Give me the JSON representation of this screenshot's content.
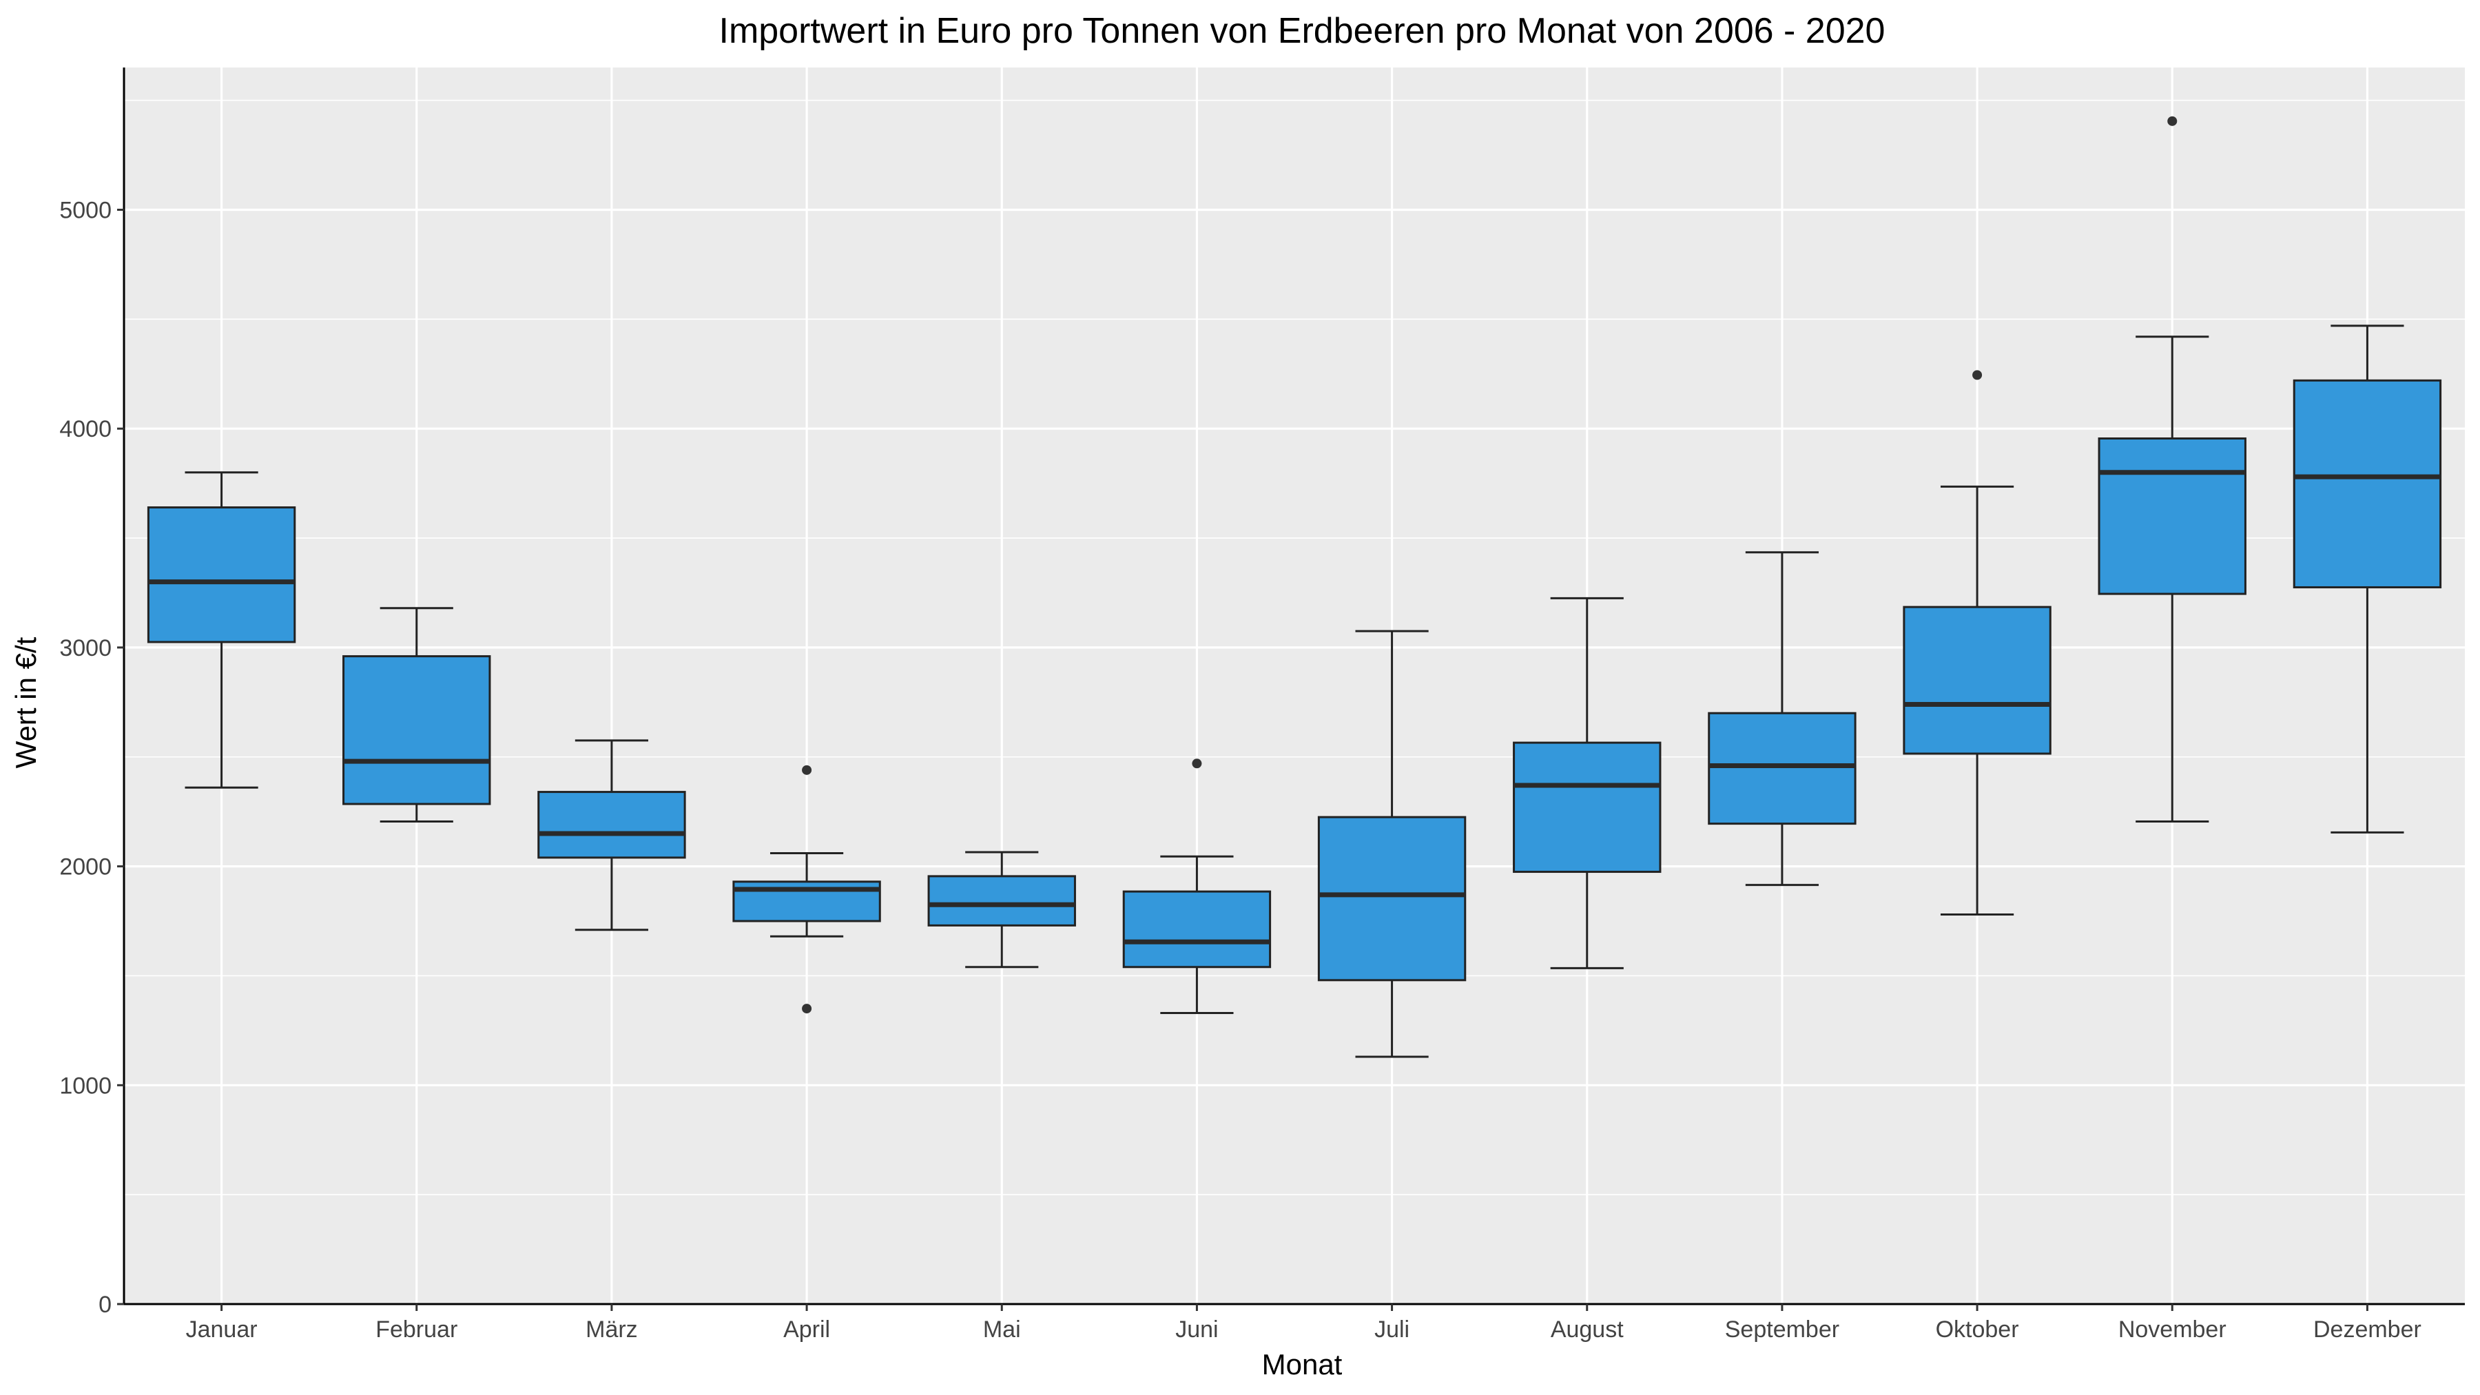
{
  "chart_data": {
    "type": "boxplot",
    "title": "Importwert in Euro pro Tonnen von Erdbeeren pro Monat von 2006 - 2020",
    "xlabel": "Monat",
    "ylabel": "Wert in €/t",
    "ylim": [
      0,
      5650
    ],
    "yticks": [
      0,
      1000,
      2000,
      3000,
      4000,
      5000
    ],
    "grid": true,
    "fill_color": "#3498db",
    "panel_color": "#ebebeb",
    "categories": [
      "Januar",
      "Februar",
      "März",
      "April",
      "Mai",
      "Juni",
      "Juli",
      "August",
      "September",
      "Oktober",
      "November",
      "Dezember"
    ],
    "boxes": [
      {
        "whisker_low": 2360,
        "q1": 3025,
        "median": 3300,
        "q3": 3640,
        "whisker_high": 3800,
        "outliers": []
      },
      {
        "whisker_low": 2205,
        "q1": 2285,
        "median": 2480,
        "q3": 2960,
        "whisker_high": 3180,
        "outliers": []
      },
      {
        "whisker_low": 1710,
        "q1": 2040,
        "median": 2150,
        "q3": 2340,
        "whisker_high": 2575,
        "outliers": []
      },
      {
        "whisker_low": 1680,
        "q1": 1750,
        "median": 1895,
        "q3": 1930,
        "whisker_high": 2060,
        "outliers": [
          1350,
          2440
        ]
      },
      {
        "whisker_low": 1540,
        "q1": 1730,
        "median": 1825,
        "q3": 1955,
        "whisker_high": 2065,
        "outliers": []
      },
      {
        "whisker_low": 1330,
        "q1": 1540,
        "median": 1655,
        "q3": 1885,
        "whisker_high": 2045,
        "outliers": [
          2470
        ]
      },
      {
        "whisker_low": 1130,
        "q1": 1480,
        "median": 1870,
        "q3": 2225,
        "whisker_high": 3075,
        "outliers": []
      },
      {
        "whisker_low": 1535,
        "q1": 1975,
        "median": 2370,
        "q3": 2565,
        "whisker_high": 3225,
        "outliers": []
      },
      {
        "whisker_low": 1915,
        "q1": 2195,
        "median": 2460,
        "q3": 2700,
        "whisker_high": 3435,
        "outliers": []
      },
      {
        "whisker_low": 1780,
        "q1": 2515,
        "median": 2740,
        "q3": 3185,
        "whisker_high": 3735,
        "outliers": [
          4245
        ]
      },
      {
        "whisker_low": 2205,
        "q1": 3245,
        "median": 3800,
        "q3": 3955,
        "whisker_high": 4420,
        "outliers": [
          5405
        ]
      },
      {
        "whisker_low": 2155,
        "q1": 3275,
        "median": 3780,
        "q3": 4220,
        "whisker_high": 4470,
        "outliers": []
      }
    ]
  }
}
